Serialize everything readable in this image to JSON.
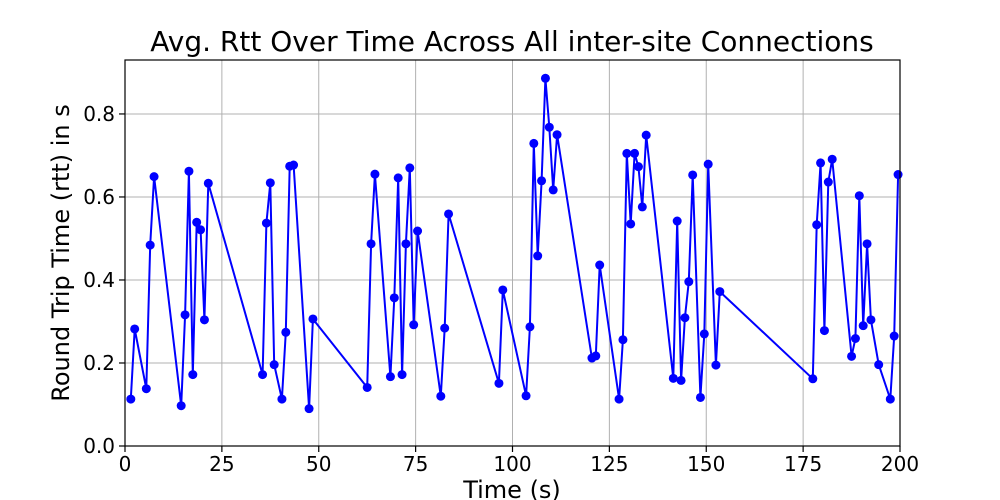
{
  "chart_data": {
    "type": "line",
    "title": "Avg. Rtt Over Time Across All inter-site Connections",
    "xlabel": "Time (s)",
    "ylabel": "Round Trip Time (rtt) in s",
    "xlim": [
      0,
      200
    ],
    "ylim": [
      0,
      0.93
    ],
    "xticks": [
      0,
      25,
      50,
      75,
      100,
      125,
      150,
      175,
      200
    ],
    "yticks": [
      0.0,
      0.2,
      0.4,
      0.6,
      0.8
    ],
    "grid": true,
    "line_color": "#0000ff",
    "marker": "circle",
    "series": [
      {
        "x": [
          1.5,
          2.5,
          5.5,
          6.5,
          7.5,
          14.5,
          15.5,
          16.5,
          17.5,
          18.5,
          19.5,
          20.5,
          21.5,
          35.5,
          36.5,
          37.5,
          38.5,
          40.5,
          41.5,
          42.5,
          43.5,
          47.5,
          48.5,
          62.5,
          63.5,
          64.5,
          68.5,
          69.5,
          70.5,
          71.5,
          72.5,
          73.5,
          74.5,
          75.5,
          81.5,
          82.5,
          83.5,
          96.5,
          97.5,
          103.5,
          104.5,
          105.5,
          106.5,
          107.5,
          108.5,
          109.5,
          110.5,
          111.5,
          120.5,
          121.5,
          122.5,
          127.5,
          128.5,
          129.5,
          130.5,
          131.5,
          132.5,
          133.5,
          134.5,
          141.5,
          142.5,
          143.5,
          144.5,
          145.5,
          146.5,
          148.5,
          149.5,
          150.5,
          152.5,
          153.5,
          177.5,
          178.5,
          179.5,
          180.5,
          181.5,
          182.5,
          187.5,
          188.5,
          189.5,
          190.5,
          191.5,
          192.5,
          194.5,
          197.5,
          198.5,
          199.5
        ],
        "y": [
          0.113,
          0.282,
          0.138,
          0.484,
          0.649,
          0.097,
          0.316,
          0.662,
          0.172,
          0.539,
          0.521,
          0.304,
          0.633,
          0.172,
          0.537,
          0.634,
          0.196,
          0.113,
          0.274,
          0.674,
          0.677,
          0.09,
          0.306,
          0.141,
          0.487,
          0.655,
          0.167,
          0.357,
          0.646,
          0.172,
          0.487,
          0.67,
          0.292,
          0.518,
          0.12,
          0.284,
          0.559,
          0.151,
          0.376,
          0.121,
          0.287,
          0.729,
          0.458,
          0.639,
          0.886,
          0.768,
          0.617,
          0.75,
          0.212,
          0.217,
          0.436,
          0.113,
          0.256,
          0.705,
          0.535,
          0.705,
          0.673,
          0.576,
          0.749,
          0.163,
          0.542,
          0.158,
          0.309,
          0.396,
          0.653,
          0.117,
          0.27,
          0.679,
          0.195,
          0.372,
          0.162,
          0.533,
          0.682,
          0.278,
          0.636,
          0.691,
          0.216,
          0.259,
          0.603,
          0.29,
          0.487,
          0.304,
          0.196,
          0.113,
          0.265,
          0.654
        ]
      }
    ]
  }
}
